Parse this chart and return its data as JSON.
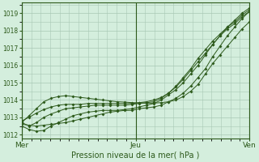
{
  "xlabel": "Pression niveau de la mer( hPa )",
  "bg_color": "#d4eedd",
  "grid_color": "#a8c8b4",
  "line_color": "#2d5a1b",
  "ylim": [
    1011.8,
    1019.6
  ],
  "xtick_labels": [
    "Mer",
    "Jeu",
    "Ven"
  ],
  "xtick_positions": [
    0,
    48,
    96
  ],
  "ytick_values": [
    1012,
    1013,
    1014,
    1015,
    1016,
    1017,
    1018,
    1019
  ],
  "series": [
    [
      1012.6,
      1012.55,
      1012.5,
      1012.55,
      1012.6,
      1012.65,
      1012.7,
      1012.8,
      1012.9,
      1013.0,
      1013.1,
      1013.2,
      1013.3,
      1013.35,
      1013.4,
      1013.4,
      1013.5,
      1013.55,
      1013.6,
      1013.7,
      1013.9,
      1014.1,
      1014.4,
      1014.8,
      1015.3,
      1015.8,
      1016.5,
      1017.1,
      1017.7,
      1018.2,
      1018.7,
      1019.1
    ],
    [
      1012.5,
      1012.3,
      1012.2,
      1012.25,
      1012.5,
      1012.7,
      1012.9,
      1013.1,
      1013.2,
      1013.3,
      1013.35,
      1013.4,
      1013.4,
      1013.4,
      1013.45,
      1013.5,
      1013.6,
      1013.7,
      1013.8,
      1014.0,
      1014.3,
      1014.6,
      1015.0,
      1015.5,
      1016.0,
      1016.6,
      1017.2,
      1017.7,
      1018.2,
      1018.6,
      1019.0,
      1019.3
    ],
    [
      1012.7,
      1012.5,
      1012.7,
      1013.0,
      1013.2,
      1013.35,
      1013.5,
      1013.55,
      1013.6,
      1013.65,
      1013.7,
      1013.7,
      1013.7,
      1013.7,
      1013.7,
      1013.75,
      1013.8,
      1013.85,
      1013.9,
      1014.1,
      1014.4,
      1014.8,
      1015.3,
      1015.8,
      1016.4,
      1016.9,
      1017.4,
      1017.8,
      1018.2,
      1018.5,
      1018.9,
      1019.2
    ],
    [
      1012.8,
      1013.0,
      1013.25,
      1013.45,
      1013.6,
      1013.7,
      1013.75,
      1013.75,
      1013.75,
      1013.8,
      1013.8,
      1013.8,
      1013.8,
      1013.8,
      1013.8,
      1013.8,
      1013.85,
      1013.9,
      1014.0,
      1014.15,
      1014.4,
      1014.75,
      1015.2,
      1015.7,
      1016.2,
      1016.7,
      1017.2,
      1017.7,
      1018.1,
      1018.4,
      1018.8,
      1019.1
    ],
    [
      1012.7,
      1013.1,
      1013.5,
      1013.9,
      1014.1,
      1014.2,
      1014.25,
      1014.2,
      1014.15,
      1014.1,
      1014.05,
      1014.0,
      1013.95,
      1013.9,
      1013.88,
      1013.85,
      1013.83,
      1013.82,
      1013.82,
      1013.85,
      1013.9,
      1014.0,
      1014.2,
      1014.5,
      1014.9,
      1015.5,
      1016.1,
      1016.6,
      1017.1,
      1017.6,
      1018.1,
      1018.5
    ]
  ],
  "n_points": 32,
  "marker": "D",
  "marker_size": 2.0,
  "line_width": 0.7,
  "ytick_fontsize": 5.5,
  "xtick_fontsize": 6.5,
  "xlabel_fontsize": 7.0
}
